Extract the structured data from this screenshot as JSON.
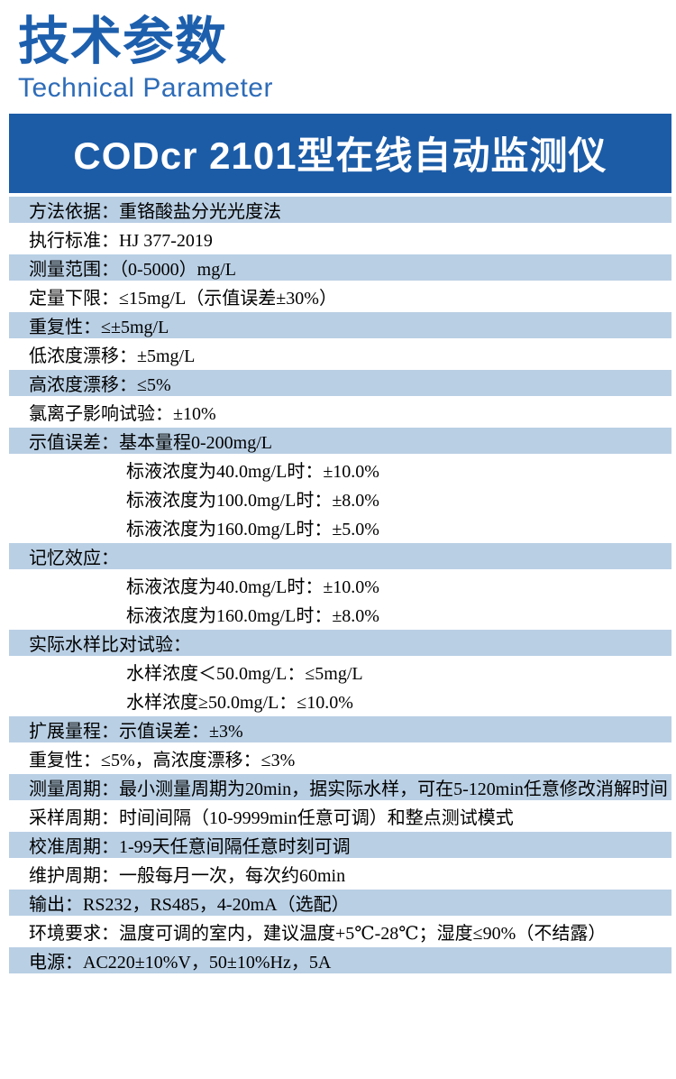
{
  "page": {
    "title": "技术参数",
    "subtitle": "Technical Parameter",
    "banner_title": "CODcr 2101型在线自动监测仪"
  },
  "colors": {
    "title": "#1d5fad",
    "subtitle": "#2e6cb8",
    "banner_bg": "#1c5ca7",
    "row_shaded_bg": "#b9cfe4",
    "row_text": "#000000"
  },
  "table": {
    "rows": [
      {
        "text": "方法依据：重铬酸盐分光光度法",
        "shaded": true,
        "indent": false
      },
      {
        "text": "执行标准：HJ 377-2019",
        "shaded": false,
        "indent": false
      },
      {
        "text": "测量范围：（0-5000）mg/L",
        "shaded": true,
        "indent": false
      },
      {
        "text": "定量下限：≤15mg/L（示值误差±30%）",
        "shaded": false,
        "indent": false
      },
      {
        "text": "重复性：≤±5mg/L",
        "shaded": true,
        "indent": false
      },
      {
        "text": "低浓度漂移：±5mg/L",
        "shaded": false,
        "indent": false
      },
      {
        "text": "高浓度漂移：≤5%",
        "shaded": true,
        "indent": false
      },
      {
        "text": "氯离子影响试验：±10%",
        "shaded": false,
        "indent": false
      },
      {
        "text": "示值误差：基本量程0-200mg/L",
        "shaded": true,
        "indent": false
      },
      {
        "text": "标液浓度为40.0mg/L时：±10.0%",
        "shaded": false,
        "indent": true
      },
      {
        "text": "标液浓度为100.0mg/L时：±8.0%",
        "shaded": false,
        "indent": true
      },
      {
        "text": "标液浓度为160.0mg/L时：±5.0%",
        "shaded": false,
        "indent": true
      },
      {
        "text": "记忆效应：",
        "shaded": true,
        "indent": false
      },
      {
        "text": "标液浓度为40.0mg/L时：±10.0%",
        "shaded": false,
        "indent": true
      },
      {
        "text": "标液浓度为160.0mg/L时：±8.0%",
        "shaded": false,
        "indent": true
      },
      {
        "text": "实际水样比对试验：",
        "shaded": true,
        "indent": false
      },
      {
        "text": "水样浓度＜50.0mg/L：≤5mg/L",
        "shaded": false,
        "indent": true
      },
      {
        "text": "水样浓度≥50.0mg/L：≤10.0%",
        "shaded": false,
        "indent": true
      },
      {
        "text": "扩展量程：示值误差：±3%",
        "shaded": true,
        "indent": false
      },
      {
        "text": "重复性：≤5%，高浓度漂移：≤3%",
        "shaded": false,
        "indent": false
      },
      {
        "text": "测量周期：最小测量周期为20min，据实际水样，可在5-120min任意修改消解时间",
        "shaded": true,
        "indent": false
      },
      {
        "text": "采样周期：时间间隔（10-9999min任意可调）和整点测试模式",
        "shaded": false,
        "indent": false
      },
      {
        "text": "校准周期：1-99天任意间隔任意时刻可调",
        "shaded": true,
        "indent": false
      },
      {
        "text": "维护周期：一般每月一次，每次约60min",
        "shaded": false,
        "indent": false
      },
      {
        "text": "输出：RS232，RS485，4-20mA（选配）",
        "shaded": true,
        "indent": false
      },
      {
        "text": "环境要求：温度可调的室内，建议温度+5℃-28℃；湿度≤90%（不结露）",
        "shaded": false,
        "indent": false
      },
      {
        "text": "电源：AC220±10%V，50±10%Hz，5A",
        "shaded": true,
        "indent": false
      }
    ]
  }
}
